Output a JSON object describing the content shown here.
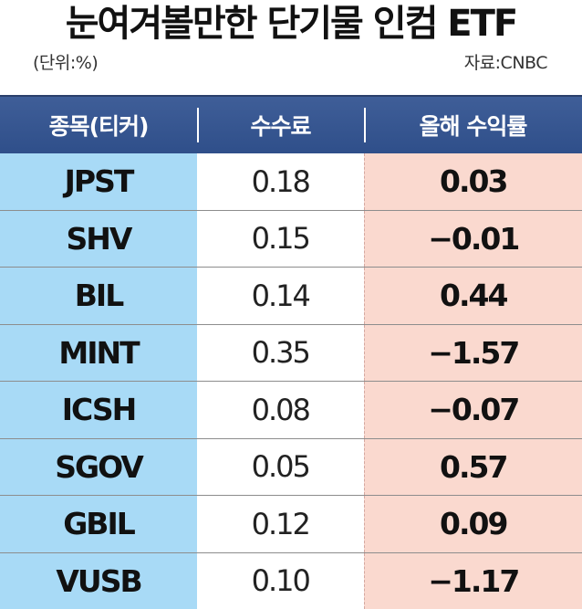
{
  "header": {
    "title": "눈여겨볼만한 단기물 인컴 ETF",
    "unit": "(단위:%)",
    "source": "자료:CNBC"
  },
  "table": {
    "columns": [
      "종목(티커)",
      "수수료",
      "올해 수익률"
    ],
    "rows": [
      {
        "ticker": "JPST",
        "fee": "0.18",
        "ytd_return": "0.03"
      },
      {
        "ticker": "SHV",
        "fee": "0.15",
        "ytd_return": "−0.01"
      },
      {
        "ticker": "BIL",
        "fee": "0.14",
        "ytd_return": "0.44"
      },
      {
        "ticker": "MINT",
        "fee": "0.35",
        "ytd_return": "−1.57"
      },
      {
        "ticker": "ICSH",
        "fee": "0.08",
        "ytd_return": "−0.07"
      },
      {
        "ticker": "SGOV",
        "fee": "0.05",
        "ytd_return": "0.57"
      },
      {
        "ticker": "GBIL",
        "fee": "0.12",
        "ytd_return": "0.09"
      },
      {
        "ticker": "VUSB",
        "fee": "0.10",
        "ytd_return": "−1.17"
      }
    ]
  },
  "colors": {
    "header_bg": "#2f4f8a",
    "ticker_bg": "#a8daf6",
    "return_bg": "#fad9cf"
  }
}
